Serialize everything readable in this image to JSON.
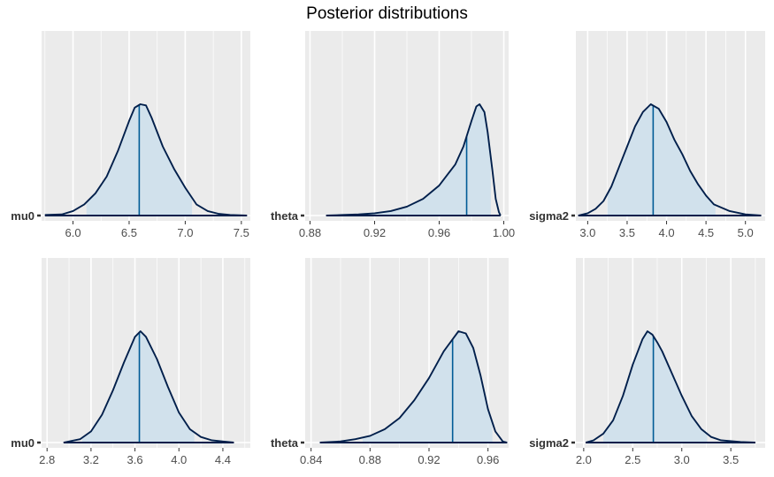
{
  "title": "Posterior distributions",
  "colors": {
    "panel_bg": "#ebebeb",
    "grid": "#ffffff",
    "density_fill": "#d1e1ec",
    "density_line": "#011f4b",
    "median_line": "#005b96"
  },
  "chart_data": [
    {
      "type": "area",
      "param_label": "mu0",
      "xlim": [
        5.72,
        7.58
      ],
      "ticks": [
        6.0,
        6.5,
        7.0,
        7.5
      ],
      "tick_labels": [
        "6.0",
        "6.5",
        "7.0",
        "7.5"
      ],
      "median": 6.59,
      "inner": [
        6.12,
        7.06
      ],
      "density": [
        [
          5.75,
          0.005
        ],
        [
          5.9,
          0.01
        ],
        [
          6.0,
          0.04
        ],
        [
          6.1,
          0.1
        ],
        [
          6.2,
          0.2
        ],
        [
          6.3,
          0.35
        ],
        [
          6.4,
          0.58
        ],
        [
          6.5,
          0.85
        ],
        [
          6.55,
          0.97
        ],
        [
          6.6,
          1.0
        ],
        [
          6.65,
          0.99
        ],
        [
          6.7,
          0.88
        ],
        [
          6.8,
          0.62
        ],
        [
          6.9,
          0.42
        ],
        [
          7.0,
          0.25
        ],
        [
          7.1,
          0.1
        ],
        [
          7.2,
          0.04
        ],
        [
          7.3,
          0.015
        ],
        [
          7.4,
          0.005
        ],
        [
          7.55,
          0.0
        ]
      ]
    },
    {
      "type": "area",
      "param_label": "theta",
      "xlim": [
        0.877,
        1.003
      ],
      "ticks": [
        0.88,
        0.92,
        0.96,
        1.0
      ],
      "tick_labels": [
        "0.88",
        "0.92",
        "0.96",
        "1.00"
      ],
      "median": 0.977,
      "inner": [
        0.891,
        0.992
      ],
      "density": [
        [
          0.89,
          0.0
        ],
        [
          0.9,
          0.005
        ],
        [
          0.91,
          0.01
        ],
        [
          0.92,
          0.02
        ],
        [
          0.93,
          0.04
        ],
        [
          0.94,
          0.08
        ],
        [
          0.95,
          0.15
        ],
        [
          0.96,
          0.27
        ],
        [
          0.97,
          0.46
        ],
        [
          0.975,
          0.62
        ],
        [
          0.98,
          0.85
        ],
        [
          0.983,
          0.98
        ],
        [
          0.985,
          1.0
        ],
        [
          0.988,
          0.93
        ],
        [
          0.99,
          0.75
        ],
        [
          0.993,
          0.4
        ],
        [
          0.995,
          0.15
        ],
        [
          0.997,
          0.03
        ],
        [
          0.998,
          0.0
        ]
      ]
    },
    {
      "type": "area",
      "param_label": "sigma2",
      "xlim": [
        2.85,
        5.25
      ],
      "ticks": [
        3.0,
        3.5,
        4.0,
        4.5,
        5.0
      ],
      "tick_labels": [
        "3.0",
        "3.5",
        "4.0",
        "4.5",
        "5.0"
      ],
      "median": 3.83,
      "inner": [
        3.25,
        4.62
      ],
      "density": [
        [
          2.88,
          0.0
        ],
        [
          3.0,
          0.02
        ],
        [
          3.1,
          0.06
        ],
        [
          3.2,
          0.13
        ],
        [
          3.3,
          0.26
        ],
        [
          3.4,
          0.44
        ],
        [
          3.5,
          0.62
        ],
        [
          3.6,
          0.8
        ],
        [
          3.7,
          0.93
        ],
        [
          3.8,
          1.0
        ],
        [
          3.9,
          0.96
        ],
        [
          4.0,
          0.84
        ],
        [
          4.1,
          0.68
        ],
        [
          4.2,
          0.55
        ],
        [
          4.3,
          0.4
        ],
        [
          4.4,
          0.28
        ],
        [
          4.5,
          0.18
        ],
        [
          4.6,
          0.1
        ],
        [
          4.8,
          0.04
        ],
        [
          5.0,
          0.01
        ],
        [
          5.2,
          0.0
        ]
      ]
    },
    {
      "type": "area",
      "param_label": "mu0",
      "xlim": [
        2.75,
        4.65
      ],
      "ticks": [
        2.8,
        3.2,
        3.6,
        4.0,
        4.4
      ],
      "tick_labels": [
        "2.8",
        "3.2",
        "3.6",
        "4.0",
        "4.4"
      ],
      "median": 3.64,
      "inner": [
        3.12,
        4.14
      ],
      "density": [
        [
          2.95,
          0.0
        ],
        [
          3.1,
          0.03
        ],
        [
          3.2,
          0.1
        ],
        [
          3.3,
          0.25
        ],
        [
          3.4,
          0.47
        ],
        [
          3.5,
          0.72
        ],
        [
          3.6,
          0.95
        ],
        [
          3.65,
          1.0
        ],
        [
          3.7,
          0.95
        ],
        [
          3.8,
          0.75
        ],
        [
          3.9,
          0.5
        ],
        [
          4.0,
          0.27
        ],
        [
          4.1,
          0.12
        ],
        [
          4.2,
          0.05
        ],
        [
          4.3,
          0.02
        ],
        [
          4.5,
          0.0
        ]
      ]
    },
    {
      "type": "area",
      "param_label": "theta",
      "xlim": [
        0.836,
        0.974
      ],
      "ticks": [
        0.84,
        0.88,
        0.92,
        0.96
      ],
      "tick_labels": [
        "0.84",
        "0.88",
        "0.92",
        "0.96"
      ],
      "median": 0.936,
      "inner": [
        0.875,
        0.963
      ],
      "density": [
        [
          0.846,
          0.0
        ],
        [
          0.86,
          0.01
        ],
        [
          0.87,
          0.03
        ],
        [
          0.88,
          0.06
        ],
        [
          0.89,
          0.12
        ],
        [
          0.9,
          0.22
        ],
        [
          0.91,
          0.38
        ],
        [
          0.92,
          0.58
        ],
        [
          0.93,
          0.82
        ],
        [
          0.94,
          1.0
        ],
        [
          0.945,
          0.98
        ],
        [
          0.95,
          0.85
        ],
        [
          0.955,
          0.6
        ],
        [
          0.96,
          0.3
        ],
        [
          0.965,
          0.1
        ],
        [
          0.97,
          0.01
        ],
        [
          0.973,
          0.0
        ]
      ]
    },
    {
      "type": "area",
      "param_label": "sigma2",
      "xlim": [
        1.92,
        3.85
      ],
      "ticks": [
        2.0,
        2.5,
        3.0,
        3.5
      ],
      "tick_labels": [
        "2.0",
        "2.5",
        "3.0",
        "3.5"
      ],
      "median": 2.71,
      "inner": [
        2.2,
        3.26
      ],
      "density": [
        [
          2.02,
          0.0
        ],
        [
          2.1,
          0.02
        ],
        [
          2.2,
          0.08
        ],
        [
          2.3,
          0.2
        ],
        [
          2.4,
          0.42
        ],
        [
          2.5,
          0.7
        ],
        [
          2.6,
          0.93
        ],
        [
          2.65,
          1.0
        ],
        [
          2.7,
          0.97
        ],
        [
          2.75,
          0.9
        ],
        [
          2.8,
          0.82
        ],
        [
          2.9,
          0.62
        ],
        [
          3.0,
          0.42
        ],
        [
          3.1,
          0.24
        ],
        [
          3.2,
          0.12
        ],
        [
          3.3,
          0.05
        ],
        [
          3.4,
          0.02
        ],
        [
          3.6,
          0.005
        ],
        [
          3.75,
          0.0
        ]
      ]
    }
  ]
}
